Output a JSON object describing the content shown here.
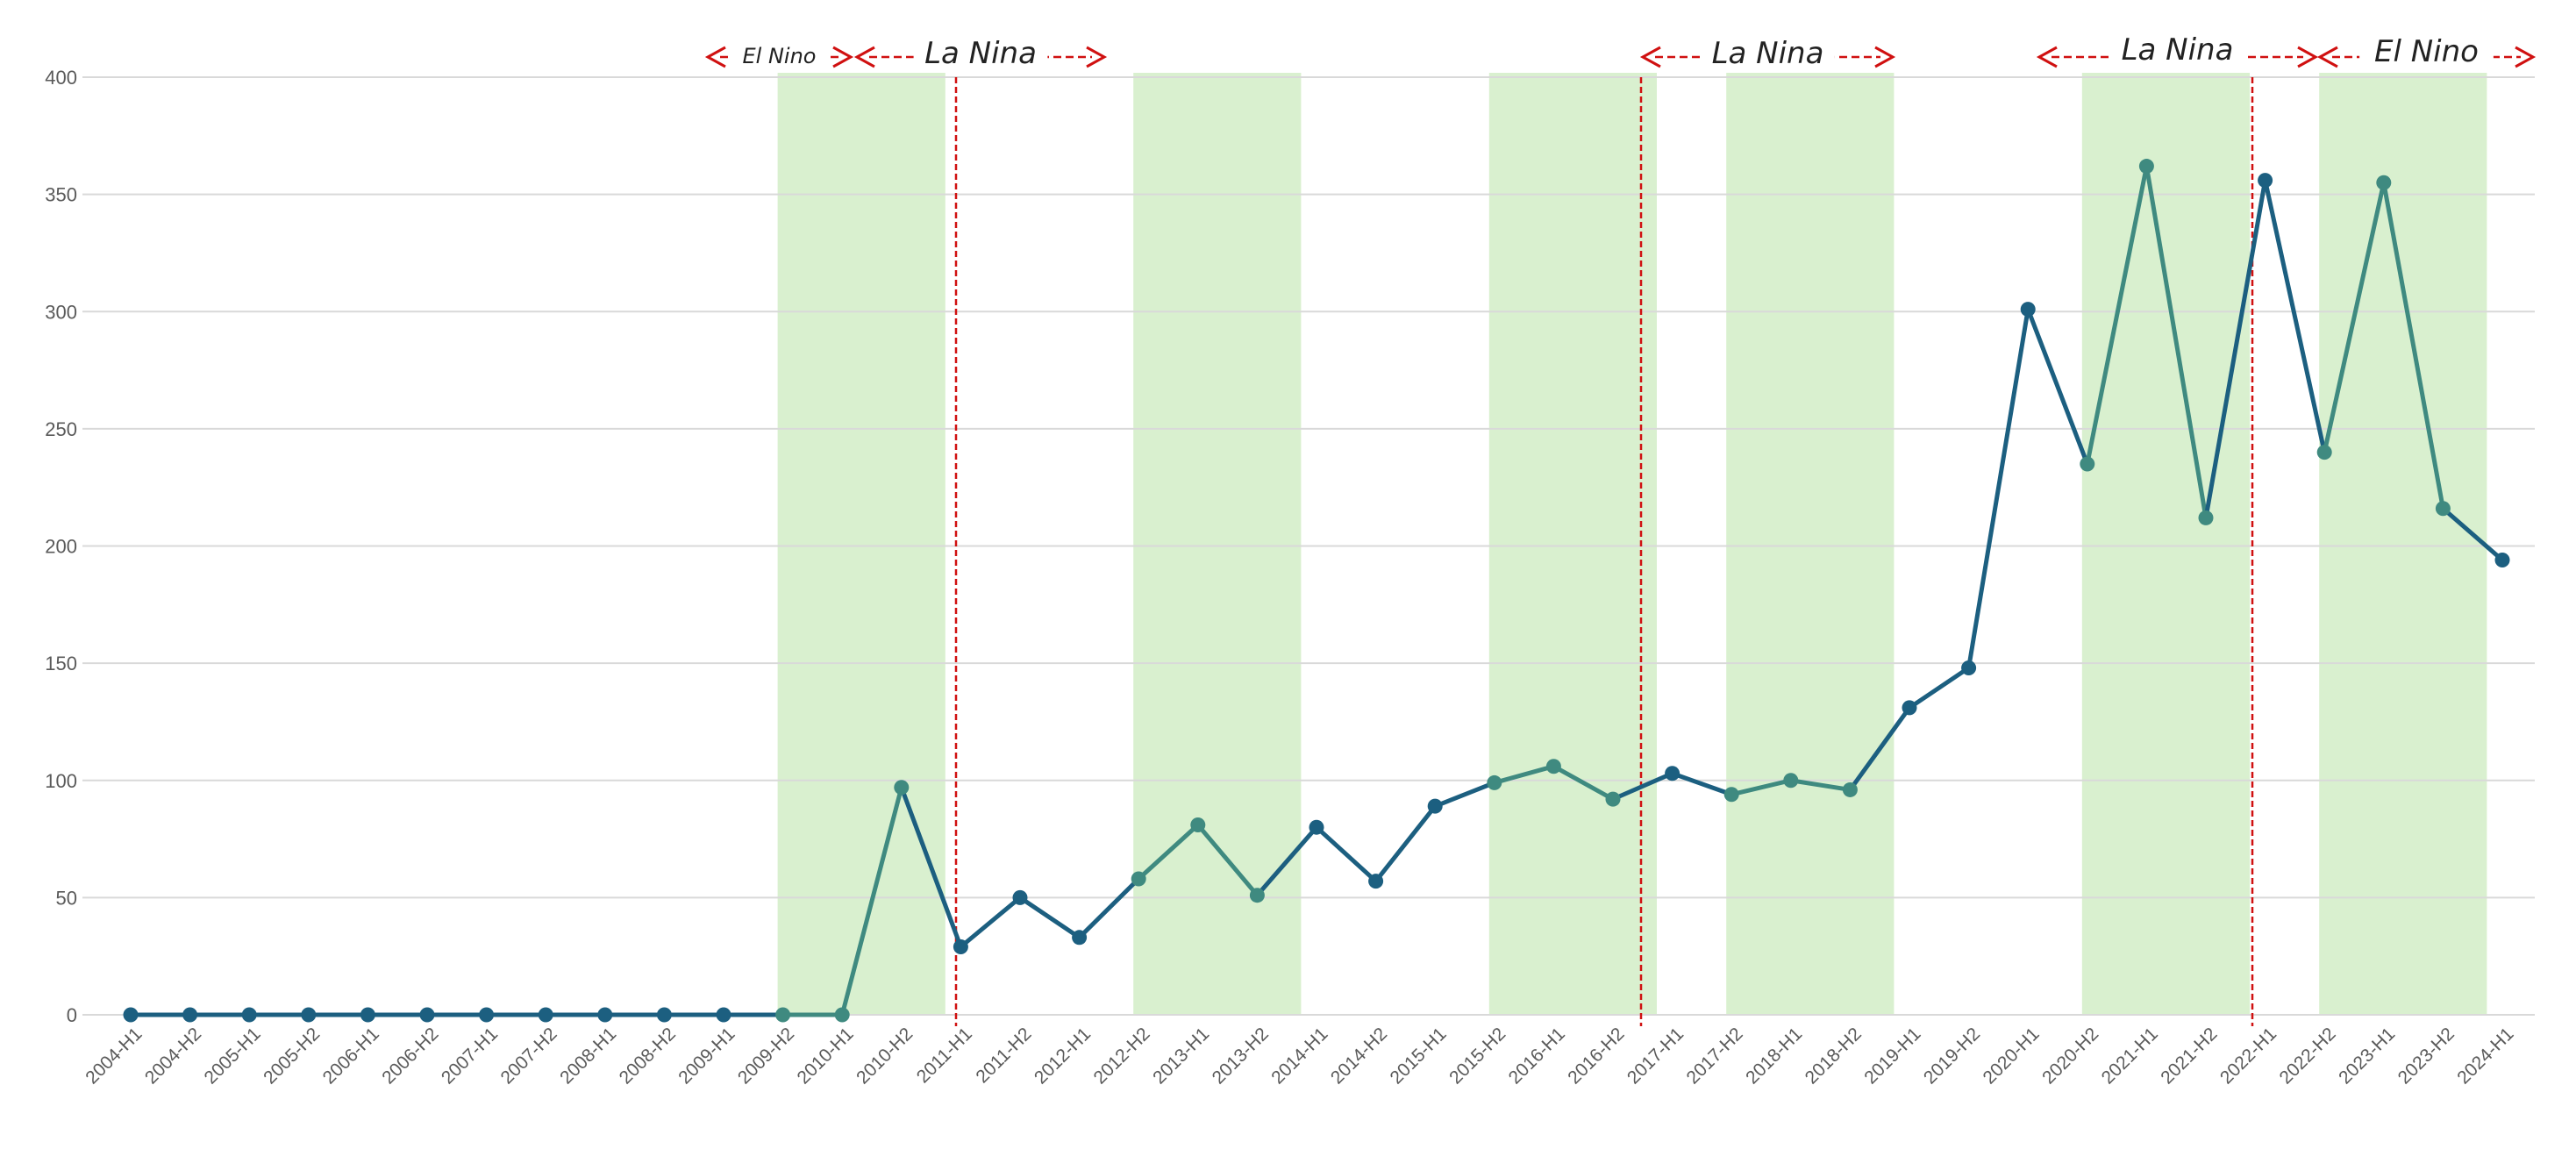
{
  "chart_data": {
    "type": "line",
    "title": "",
    "xlabel": "",
    "ylabel": "",
    "ylim": [
      0,
      400
    ],
    "yticks": [
      0,
      50,
      100,
      150,
      200,
      250,
      300,
      350,
      400
    ],
    "grid": "horizontal",
    "categories": [
      "2004-H1",
      "2004-H2",
      "2005-H1",
      "2005-H2",
      "2006-H1",
      "2006-H2",
      "2007-H1",
      "2007-H2",
      "2008-H1",
      "2008-H2",
      "2009-H1",
      "2009-H2",
      "2010-H1",
      "2010-H2",
      "2011-H1",
      "2011-H2",
      "2012-H1",
      "2012-H2",
      "2013-H1",
      "2013-H2",
      "2014-H1",
      "2014-H2",
      "2015-H1",
      "2015-H2",
      "2016-H1",
      "2016-H2",
      "2017-H1",
      "2017-H2",
      "2018-H1",
      "2018-H2",
      "2019-H1",
      "2019-H2",
      "2020-H1",
      "2020-H2",
      "2021-H1",
      "2021-H2",
      "2022-H1",
      "2022-H2",
      "2023-H1",
      "2023-H2",
      "2024-H1"
    ],
    "series": [
      {
        "values": [
          0,
          0,
          0,
          0,
          0,
          0,
          0,
          0,
          0,
          0,
          0,
          0,
          0,
          97,
          29,
          50,
          33,
          58,
          81,
          51,
          80,
          57,
          89,
          99,
          106,
          92,
          103,
          94,
          100,
          96,
          131,
          148,
          301,
          235,
          362,
          212,
          356,
          240,
          355,
          216,
          194
        ]
      }
    ],
    "colors": {
      "line": "#1c5f80",
      "line_in_shade": "#3f8a80",
      "shade": "#d9f0cf",
      "divider": "#d01010",
      "arrow": "#d01010",
      "grid": "#d9d9d9",
      "tick_text": "#5a5a5a"
    },
    "shaded_ranges": [
      {
        "from": "2009-H2",
        "to": "2010-H2"
      },
      {
        "from": "2012-H2",
        "to": "2013-H2"
      },
      {
        "from": "2015-H2",
        "to": "2016-H2"
      },
      {
        "from": "2017-H2",
        "to": "2018-H2"
      },
      {
        "from": "2020-H2",
        "to": "2021-H2"
      },
      {
        "from": "2022-H2",
        "to": "2023-H2"
      }
    ],
    "dividers": [
      "2011-H1",
      "2016-H2",
      "2022-H1"
    ],
    "annotations": [
      {
        "text": "El Nino",
        "from": "2009-H1",
        "to": "2010-H1"
      },
      {
        "text": "La Nina",
        "from": "2010-H1",
        "to": "2012-H1"
      },
      {
        "text": "La Nina",
        "from": "2016-H2",
        "to": "2018-H2"
      },
      {
        "text": "La Nina",
        "from": "2020-H2",
        "to": "2022-H2"
      },
      {
        "text": "El Nino",
        "from": "2022-H2",
        "to": "2024-H1"
      }
    ]
  }
}
